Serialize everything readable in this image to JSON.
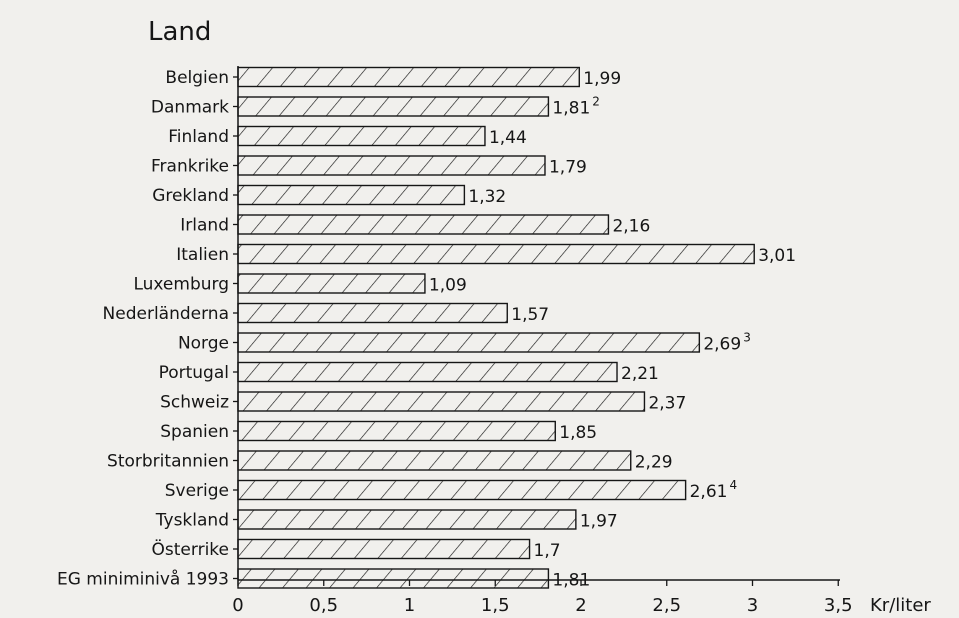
{
  "chart_data": {
    "type": "bar",
    "orientation": "horizontal",
    "y_axis_title": "Land",
    "x_unit_label": "Kr/liter",
    "xlim": [
      0,
      3.5
    ],
    "x_ticks": [
      0,
      0.5,
      1,
      1.5,
      2,
      2.5,
      3,
      3.5
    ],
    "x_tick_labels": [
      "0",
      "0,5",
      "1",
      "1,5",
      "2",
      "2,5",
      "3",
      "3,5"
    ],
    "grid": false,
    "bar_fill": "diagonal hatch",
    "categories": [
      "Belgien",
      "Danmark",
      "Finland",
      "Frankrike",
      "Grekland",
      "Irland",
      "Italien",
      "Luxemburg",
      "Nederländerna",
      "Norge",
      "Portugal",
      "Schweiz",
      "Spanien",
      "Storbritannien",
      "Sverige",
      "Tyskland",
      "Österrike",
      "EG miniminivå 1993"
    ],
    "values": [
      1.99,
      1.81,
      1.44,
      1.79,
      1.32,
      2.16,
      3.01,
      1.09,
      1.57,
      2.69,
      2.21,
      2.37,
      1.85,
      2.29,
      2.61,
      1.97,
      1.7,
      1.81
    ],
    "value_labels": [
      "1,99",
      "1,81",
      "1,44",
      "1,79",
      "1,32",
      "2,16",
      "3,01",
      "1,09",
      "1,57",
      "2,69",
      "2,21",
      "2,37",
      "1,85",
      "2,29",
      "2,61",
      "1,97",
      "1,7",
      "1,81"
    ],
    "footnote_marks": [
      "",
      "2",
      "",
      "",
      "",
      "",
      "",
      "",
      "",
      "3",
      "",
      "",
      "",
      "",
      "4",
      "",
      "",
      ""
    ]
  },
  "colors": {
    "background": "#f1f0ed",
    "ink": "#161616"
  }
}
